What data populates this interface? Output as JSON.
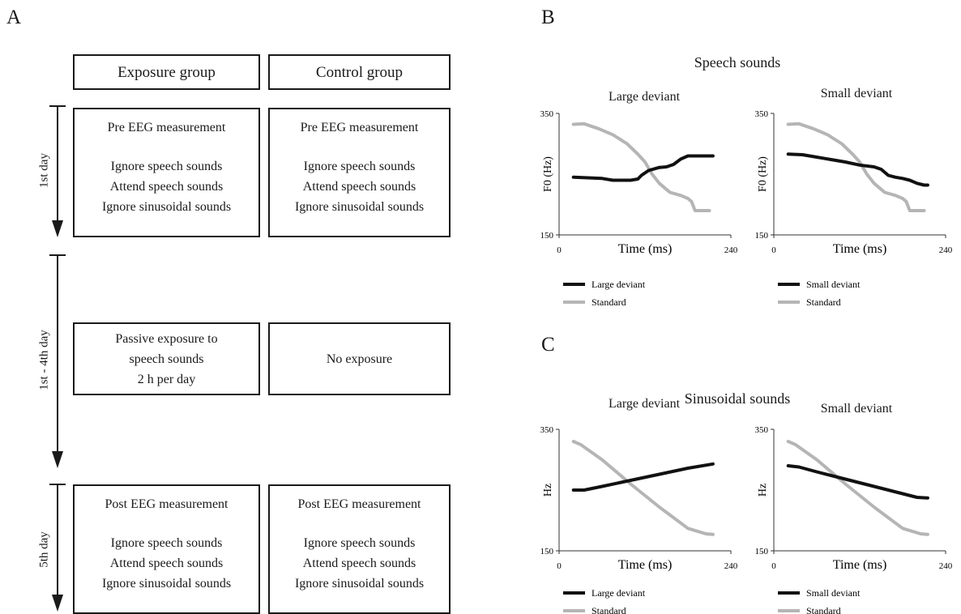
{
  "panels": {
    "a": "A",
    "b": "B",
    "c": "C"
  },
  "design": {
    "headers": {
      "exposure": "Exposure group",
      "control": "Control group"
    },
    "days": {
      "first": "1st day",
      "middle": "1st - 4th day",
      "fifth": "5th day"
    },
    "pre": {
      "exposure": [
        "Pre EEG measurement",
        "Ignore speech sounds",
        "Attend speech sounds",
        "Ignore sinusoidal sounds"
      ],
      "control": [
        "Pre EEG measurement",
        "Ignore speech sounds",
        "Attend speech sounds",
        "Ignore sinusoidal sounds"
      ]
    },
    "training": {
      "exposure": [
        "Passive exposure to",
        "speech sounds",
        "2 h per day"
      ],
      "control": [
        "No exposure"
      ]
    },
    "post": {
      "exposure": [
        "Post EEG measurement",
        "Ignore speech sounds",
        "Attend speech sounds",
        "Ignore sinusoidal sounds"
      ],
      "control": [
        "Post EEG measurement",
        "Ignore speech sounds",
        "Attend speech sounds",
        "Ignore sinusoidal sounds"
      ]
    }
  },
  "speech": {
    "title": "Speech sounds"
  },
  "sinusoidal": {
    "title": "Sinusoidal sounds"
  },
  "chart_data": [
    {
      "type": "line",
      "title": "Large deviant",
      "xlabel": "Time (ms)",
      "ylabel": "F0 (Hz)",
      "xlim": [
        0,
        240
      ],
      "ylim": [
        150,
        350
      ],
      "xticks": [
        "0",
        "240"
      ],
      "yticks": [
        "150",
        "350"
      ],
      "legend_placement": "bottom",
      "series": [
        {
          "name": "Large deviant",
          "color": "#111111",
          "x": [
            20,
            40,
            60,
            75,
            90,
            100,
            110,
            115,
            125,
            140,
            150,
            160,
            170,
            180,
            190,
            215
          ],
          "y": [
            245,
            244,
            243,
            240,
            240,
            240,
            242,
            248,
            256,
            261,
            262,
            266,
            275,
            280,
            280,
            280
          ]
        },
        {
          "name": "Standard",
          "color": "#b5b5b5",
          "x": [
            20,
            35,
            55,
            75,
            95,
            110,
            120,
            130,
            140,
            150,
            155,
            170,
            180,
            185,
            190,
            200,
            210
          ],
          "y": [
            332,
            333,
            325,
            315,
            300,
            283,
            270,
            250,
            235,
            225,
            220,
            215,
            210,
            205,
            190,
            190,
            190
          ]
        }
      ]
    },
    {
      "type": "line",
      "title": "Small deviant",
      "xlabel": "Time (ms)",
      "ylabel": "F0 (Hz)",
      "xlim": [
        0,
        240
      ],
      "ylim": [
        150,
        350
      ],
      "xticks": [
        "0",
        "240"
      ],
      "yticks": [
        "150",
        "350"
      ],
      "legend_placement": "bottom",
      "series": [
        {
          "name": "Small deviant",
          "color": "#111111",
          "x": [
            20,
            40,
            60,
            80,
            100,
            120,
            140,
            150,
            160,
            170,
            180,
            190,
            200,
            210,
            215
          ],
          "y": [
            283,
            282,
            278,
            274,
            270,
            265,
            262,
            258,
            248,
            245,
            243,
            240,
            235,
            232,
            232
          ]
        },
        {
          "name": "Standard",
          "color": "#b5b5b5",
          "x": [
            20,
            35,
            55,
            75,
            95,
            110,
            120,
            130,
            140,
            150,
            155,
            170,
            180,
            185,
            190,
            200,
            210
          ],
          "y": [
            332,
            333,
            325,
            315,
            300,
            283,
            270,
            250,
            235,
            225,
            220,
            215,
            210,
            205,
            190,
            190,
            190
          ]
        }
      ]
    },
    {
      "type": "line",
      "title": "Large deviant",
      "xlabel": "Time (ms)",
      "ylabel": "Hz",
      "xlim": [
        0,
        240
      ],
      "ylim": [
        150,
        350
      ],
      "xticks": [
        "0",
        "240"
      ],
      "yticks": [
        "150",
        "350"
      ],
      "legend_placement": "bottom",
      "series": [
        {
          "name": "Large deviant",
          "color": "#111111",
          "x": [
            20,
            35,
            60,
            100,
            140,
            180,
            215
          ],
          "y": [
            250,
            250,
            256,
            266,
            276,
            286,
            293
          ]
        },
        {
          "name": "Standard",
          "color": "#b5b5b5",
          "x": [
            20,
            30,
            60,
            100,
            140,
            180,
            205,
            215
          ],
          "y": [
            330,
            325,
            300,
            260,
            222,
            187,
            178,
            177
          ]
        }
      ]
    },
    {
      "type": "line",
      "title": "Small deviant",
      "xlabel": "Time (ms)",
      "ylabel": "Hz",
      "xlim": [
        0,
        240
      ],
      "ylim": [
        150,
        350
      ],
      "xticks": [
        "0",
        "240"
      ],
      "yticks": [
        "150",
        "350"
      ],
      "legend_placement": "bottom",
      "series": [
        {
          "name": "Small deviant",
          "color": "#111111",
          "x": [
            20,
            35,
            60,
            100,
            140,
            180,
            200,
            215
          ],
          "y": [
            290,
            288,
            280,
            268,
            256,
            244,
            238,
            237
          ]
        },
        {
          "name": "Standard",
          "color": "#b5b5b5",
          "x": [
            20,
            30,
            60,
            100,
            140,
            180,
            205,
            215
          ],
          "y": [
            330,
            325,
            300,
            260,
            222,
            187,
            178,
            177
          ]
        }
      ]
    }
  ]
}
